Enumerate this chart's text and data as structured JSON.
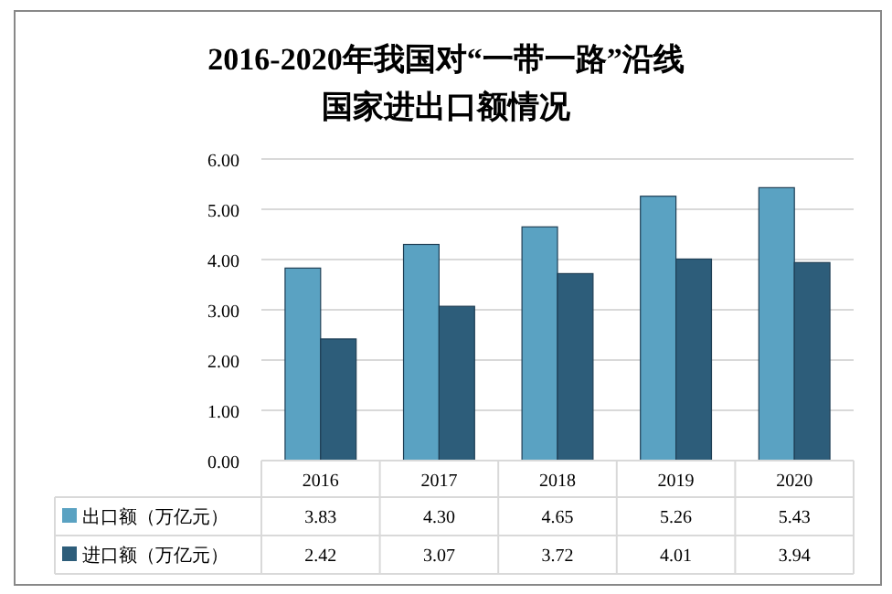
{
  "chart_data": {
    "type": "bar",
    "title": "2016-2020年我国对“一带一路”沿线国家进出口额情况",
    "categories": [
      "2016",
      "2017",
      "2018",
      "2019",
      "2020"
    ],
    "series": [
      {
        "name": "出口额（万亿元）",
        "color": "#5aa2c2",
        "values": [
          3.83,
          4.3,
          4.65,
          5.26,
          5.43
        ],
        "value_labels": [
          "3.83",
          "4.30",
          "4.65",
          "5.26",
          "5.43"
        ]
      },
      {
        "name": "进口额（万亿元）",
        "color": "#2d5d7a",
        "values": [
          2.42,
          3.07,
          3.72,
          4.01,
          3.94
        ],
        "value_labels": [
          "2.42",
          "3.07",
          "3.72",
          "4.01",
          "3.94"
        ]
      }
    ],
    "ylim": [
      0,
      6
    ],
    "yticks": [
      {
        "value": 0,
        "label": "0.00"
      },
      {
        "value": 1,
        "label": "1.00"
      },
      {
        "value": 2,
        "label": "2.00"
      },
      {
        "value": 3,
        "label": "3.00"
      },
      {
        "value": 4,
        "label": "4.00"
      },
      {
        "value": 5,
        "label": "5.00"
      },
      {
        "value": 6,
        "label": "6.00"
      }
    ],
    "grid": "y",
    "legend": "bottom left"
  }
}
